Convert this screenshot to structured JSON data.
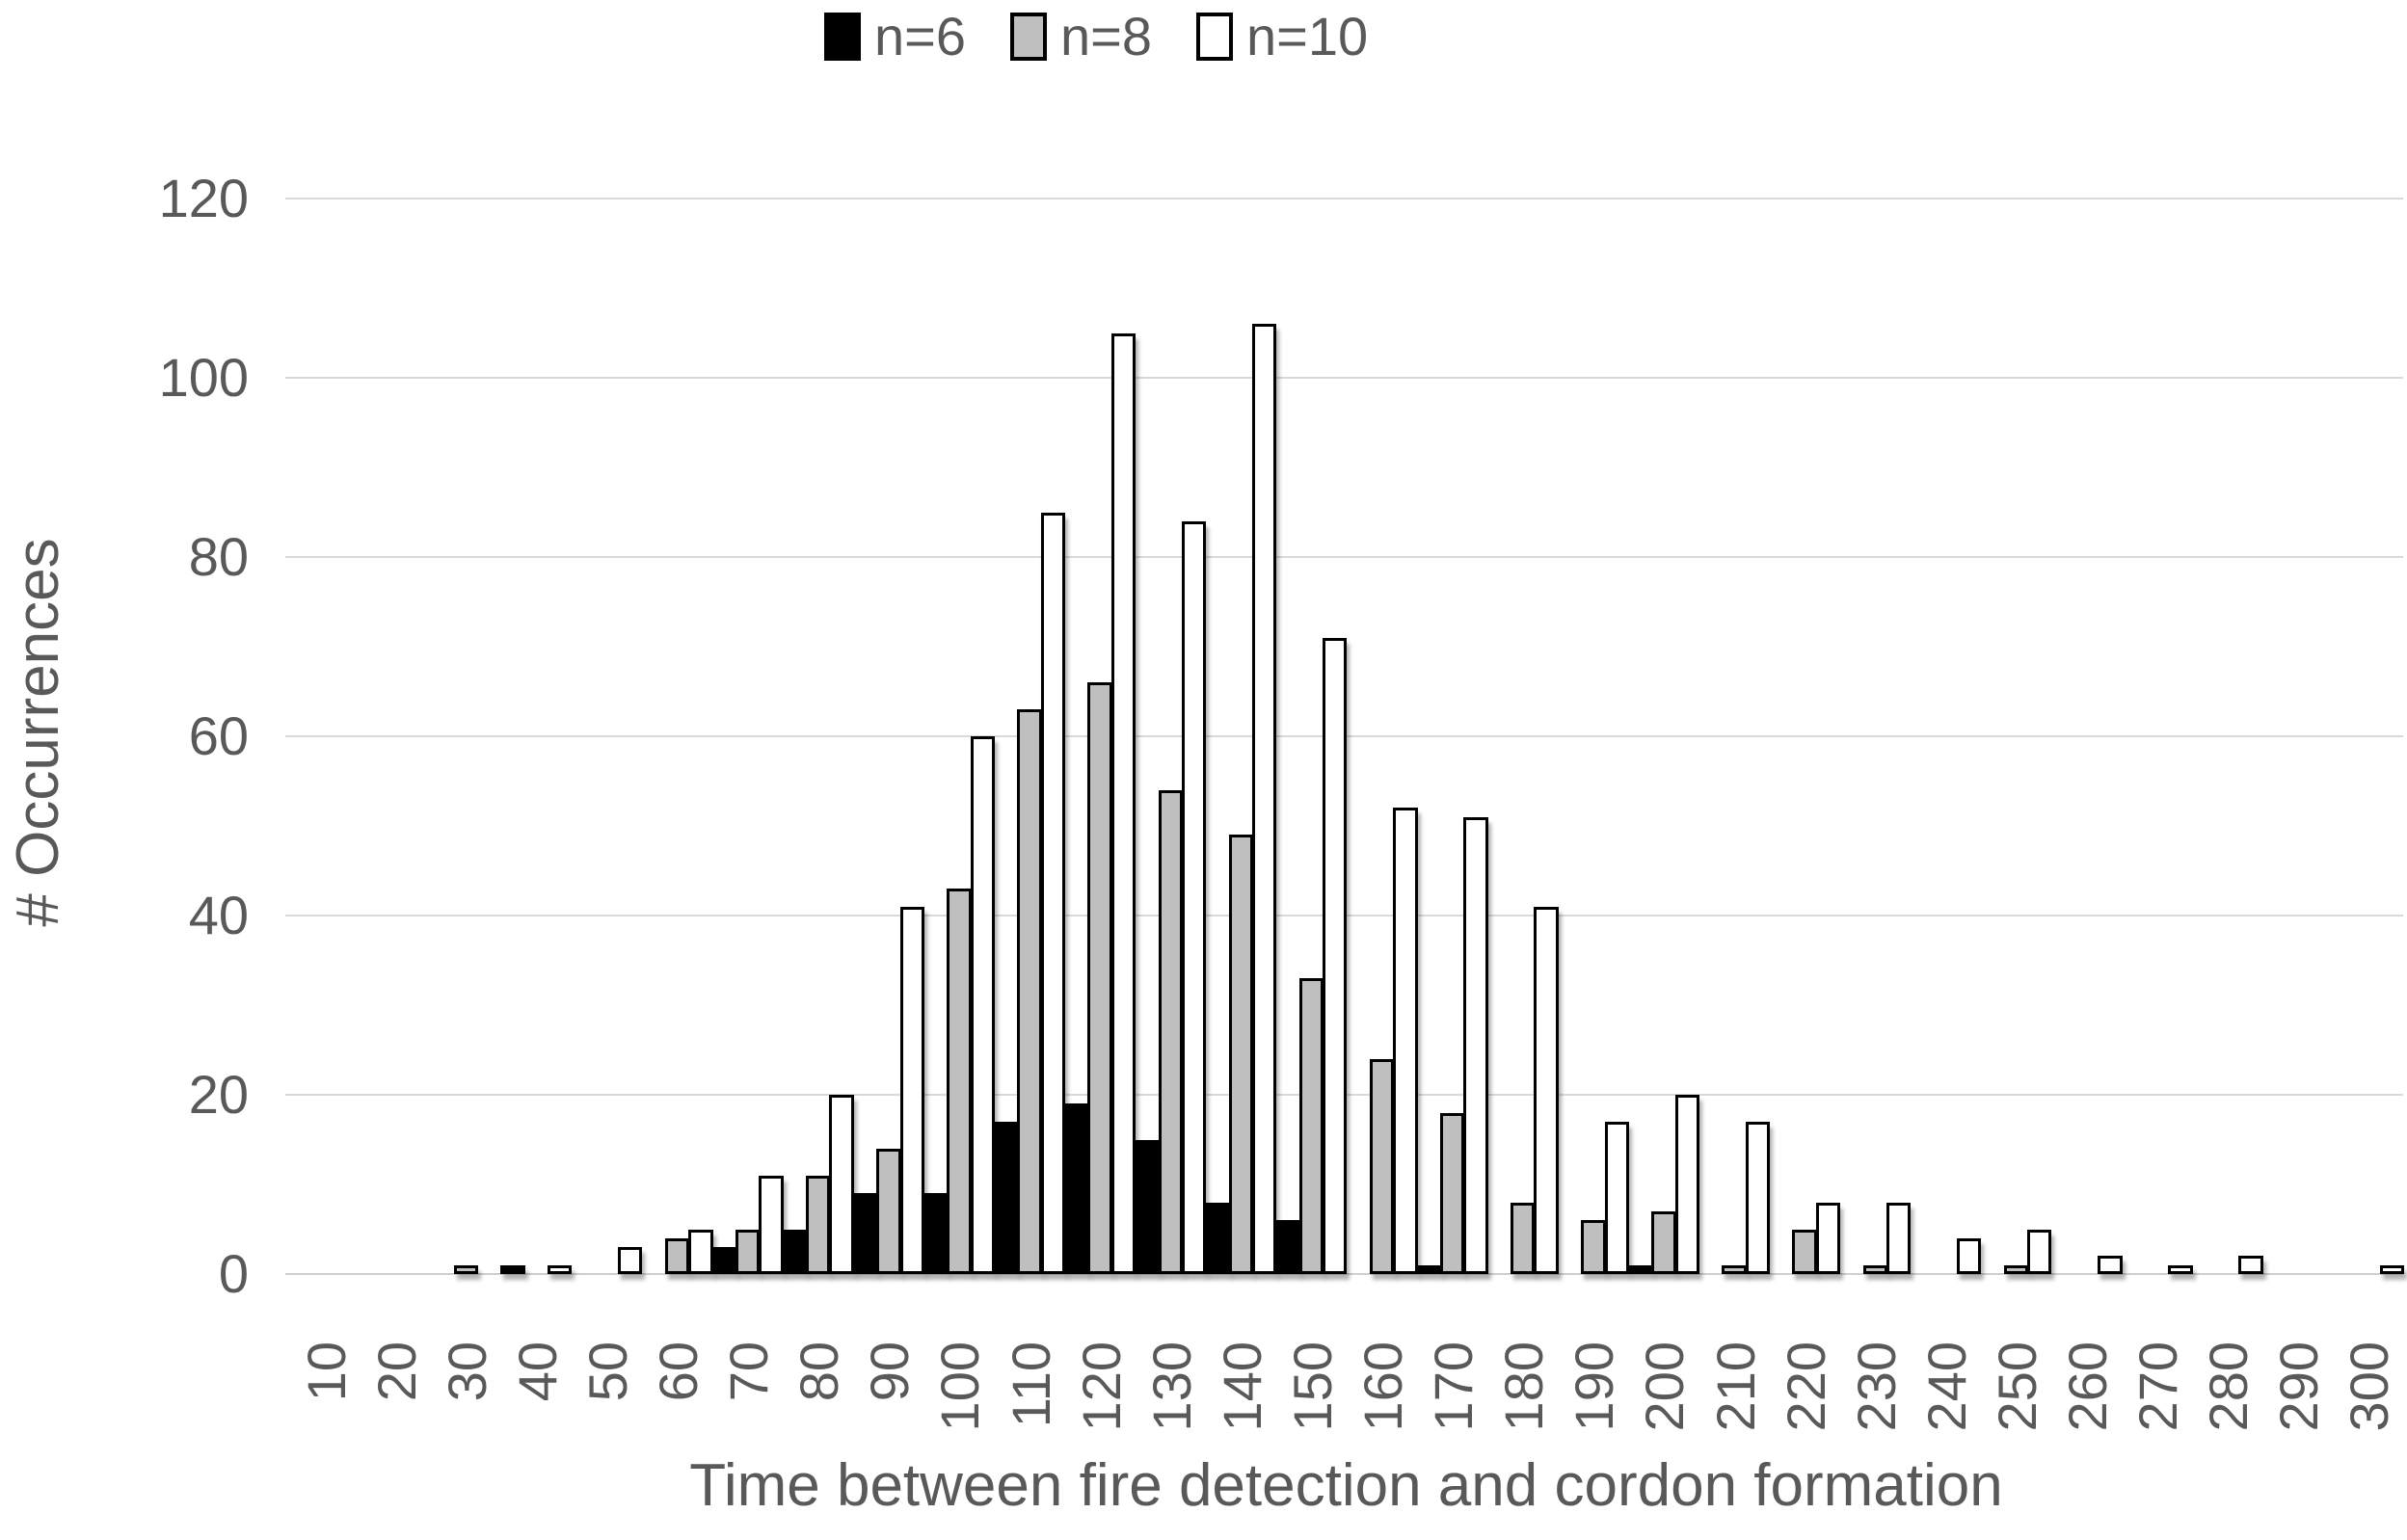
{
  "legend": {
    "items": [
      {
        "label": "n=6",
        "fill": "#000000",
        "border": "#000000"
      },
      {
        "label": "n=8",
        "fill": "#bfbfbf",
        "border": "#000000"
      },
      {
        "label": "n=10",
        "fill": "#ffffff",
        "border": "#000000"
      }
    ]
  },
  "chart_data": {
    "type": "bar",
    "title": "",
    "xlabel": "Time between fire detection and cordon formation",
    "ylabel": "# Occurrences",
    "categories": [
      "10",
      "20",
      "30",
      "40",
      "50",
      "60",
      "70",
      "80",
      "90",
      "100",
      "110",
      "120",
      "130",
      "140",
      "150",
      "160",
      "170",
      "180",
      "190",
      "200",
      "210",
      "220",
      "230",
      "240",
      "250",
      "260",
      "270",
      "280",
      "290",
      "300"
    ],
    "series": [
      {
        "name": "n=6",
        "color": "#000000",
        "values": [
          0,
          0,
          0,
          1,
          0,
          0,
          3,
          5,
          9,
          9,
          17,
          19,
          15,
          8,
          6,
          0,
          1,
          0,
          0,
          1,
          0,
          0,
          0,
          0,
          0,
          0,
          0,
          0,
          0,
          0
        ]
      },
      {
        "name": "n=8",
        "color": "#bfbfbf",
        "values": [
          0,
          0,
          1,
          0,
          0,
          4,
          5,
          11,
          14,
          43,
          63,
          66,
          54,
          49,
          33,
          24,
          18,
          8,
          6,
          7,
          1,
          5,
          1,
          0,
          1,
          0,
          0,
          0,
          0,
          0
        ]
      },
      {
        "name": "n=10",
        "color": "#ffffff",
        "values": [
          0,
          0,
          0,
          1,
          3,
          5,
          11,
          20,
          41,
          60,
          85,
          105,
          84,
          106,
          71,
          52,
          51,
          41,
          17,
          20,
          17,
          8,
          8,
          4,
          5,
          2,
          1,
          2,
          0,
          1
        ]
      }
    ],
    "ylim": [
      0,
      120
    ],
    "yticks": [
      0,
      20,
      40,
      60,
      80,
      100,
      120
    ],
    "grid": true,
    "legend_position": "top",
    "bar_style": "clustered, no gap between categories, black outlines, light drop shadow",
    "colors": {
      "gridline": "#d9d9d9",
      "axis_text": "#595959",
      "background": "#ffffff"
    }
  }
}
